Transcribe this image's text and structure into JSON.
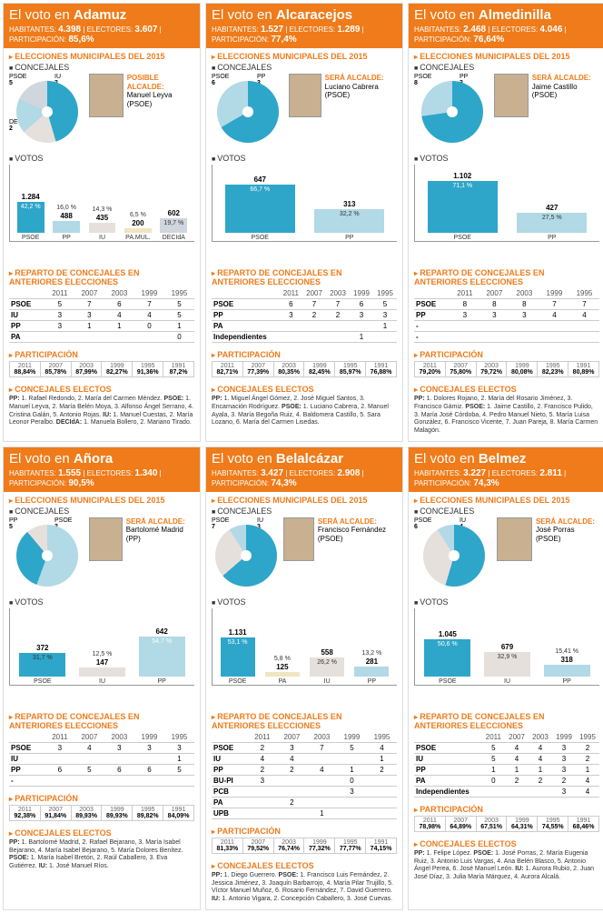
{
  "c": {
    "psoe": "#2ea6c9",
    "pp": "#b1d9e6",
    "iu": "#e6e0dc",
    "pa": "#efe5c0",
    "decida": "#cfd6dd",
    "orange": "#ef7b1a",
    "grid": "#cccccc",
    "brown": "#a8856c"
  },
  "cards": [
    {
      "town": "Adamuz",
      "hab": "4.398",
      "elec": "3.607",
      "part": "85,6%",
      "seats": [
        [
          "PSOE",
          "5",
          "#2ea6c9"
        ],
        [
          "IU",
          "2",
          "#e6e0dc"
        ],
        [
          "PP",
          "2",
          "#b1d9e6"
        ],
        [
          "DECIdA",
          "2",
          "#cfd6dd"
        ]
      ],
      "mayor_role": "POSIBLE ALCALDE:",
      "mayor": "Manuel Leyva (PSOE)",
      "bars": [
        [
          "PSOE",
          "1.284",
          "42,2 %",
          42.2,
          "#2ea6c9"
        ],
        [
          "PP",
          "488",
          "16,0 %",
          16.0,
          "#b1d9e6"
        ],
        [
          "IU",
          "435",
          "14,3 %",
          14.3,
          "#e6e0dc"
        ],
        [
          "PA.MUL.",
          "200",
          "6,5 %",
          6.5,
          "#efe5c0"
        ],
        [
          "DECIdA",
          "602",
          "19,7 %",
          19.7,
          "#cfd6dd"
        ]
      ],
      "ymax": 3000,
      "hist_cols": [
        "2011",
        "2007",
        "2003",
        "1999",
        "1995"
      ],
      "hist": [
        [
          "PSOE",
          "5",
          "7",
          "6",
          "7",
          "5"
        ],
        [
          "IU",
          "3",
          "3",
          "4",
          "4",
          "5"
        ],
        [
          "PP",
          "3",
          "1",
          "1",
          "0",
          "1"
        ],
        [
          "PA",
          "",
          "",
          "",
          "",
          "0"
        ]
      ],
      "p": [
        [
          "2011",
          "88,84%"
        ],
        [
          "2007",
          "85,78%"
        ],
        [
          "2003",
          "87,99%"
        ],
        [
          "1999",
          "82,27%"
        ],
        [
          "1995",
          "91,36%"
        ],
        [
          "1991",
          "87,2%"
        ]
      ],
      "elc": "PP: 1. Rafael Redondo, 2. María del Carmen Méndez. PSOE: 1. Manuel Leyva, 2. María Belén Moya, 3. Alfonso Ángel Serrano, 4. Cristina Galán, 5. Antonio Rojas. IU: 1. Manuel Cuestas, 2. María Leonor Peralbo. DECIdA: 1. Manuela Bollero, 2. Mariano Tirado."
    },
    {
      "town": "Alcaracejos",
      "hab": "1.527",
      "elec": "1.289",
      "part": "77,4%",
      "seats": [
        [
          "PSOE",
          "6",
          "#2ea6c9"
        ],
        [
          "PP",
          "3",
          "#b1d9e6"
        ]
      ],
      "mayor_role": "SERÁ ALCALDE:",
      "mayor": "Luciano Cabrera (PSOE)",
      "bars": [
        [
          "PSOE",
          "647",
          "66,7 %",
          66.7,
          "#2ea6c9"
        ],
        [
          "PP",
          "313",
          "32,2 %",
          32.2,
          "#b1d9e6"
        ]
      ],
      "ymax": 3000,
      "hist_cols": [
        "2011",
        "2007",
        "2003",
        "1999",
        "1995"
      ],
      "hist": [
        [
          "PSOE",
          "6",
          "7",
          "7",
          "6",
          "5"
        ],
        [
          "PP",
          "3",
          "2",
          "2",
          "3",
          "3"
        ],
        [
          "PA",
          "",
          "",
          "",
          "",
          "1"
        ],
        [
          "Independientes",
          "",
          "",
          "",
          "1",
          ""
        ]
      ],
      "p": [
        [
          "2011",
          "82,71%"
        ],
        [
          "2007",
          "77,39%"
        ],
        [
          "2003",
          "80,35%"
        ],
        [
          "1999",
          "82,45%"
        ],
        [
          "1995",
          "85,97%"
        ],
        [
          "1991",
          "76,88%"
        ]
      ],
      "elc": "PP: 1. Miguel Ángel Gómez, 2. José Miguel Santos, 3. Encarnación Rodríguez. PSOE: 1. Luciano Cabrera, 2. Manuel Ayala, 3. María Begoña Ruiz, 4. Baldomera Castillo, 5. Sara Lozano, 6. María del Carmen Lisedas."
    },
    {
      "town": "Almedinilla",
      "hab": "2.468",
      "elec": "4.046",
      "part": "76,64%",
      "seats": [
        [
          "PSOE",
          "8",
          "#2ea6c9"
        ],
        [
          "PP",
          "3",
          "#b1d9e6"
        ]
      ],
      "mayor_role": "SERÁ ALCALDE:",
      "mayor": "Jaime Castillo (PSOE)",
      "bars": [
        [
          "PSOE",
          "1.102",
          "71,1 %",
          71.1,
          "#2ea6c9"
        ],
        [
          "PP",
          "427",
          "27,5 %",
          27.5,
          "#b1d9e6"
        ]
      ],
      "ymax": 3000,
      "hist_cols": [
        "2011",
        "2007",
        "2003",
        "1999",
        "1995"
      ],
      "hist": [
        [
          "PSOE",
          "8",
          "8",
          "8",
          "7",
          "7"
        ],
        [
          "PP",
          "3",
          "3",
          "3",
          "4",
          "4"
        ],
        [
          "-",
          "",
          "",
          "",
          "",
          ""
        ],
        [
          "-",
          "",
          "",
          "",
          "",
          ""
        ]
      ],
      "p": [
        [
          "2011",
          "79,20%"
        ],
        [
          "2007",
          "75,80%"
        ],
        [
          "2003",
          "79,72%"
        ],
        [
          "1999",
          "80,08%"
        ],
        [
          "1995",
          "82,23%"
        ],
        [
          "1991",
          "80,89%"
        ]
      ],
      "elc": "PP: 1. Dolores Rojano, 2. María del Rosario Jiménez, 3. Francisco Gámiz. PSOE: 1. Jaime Castillo, 2. Francisco Pulido, 3. María José Córdoba, 4. Pedro Manuel Nieto, 5. María Luisa González, 6. Francisco Vicente, 7. Juan Pareja, 8. María Carmen Malagón."
    },
    {
      "town": "Añora",
      "hab": "1.555",
      "elec": "1.340",
      "part": "90,5%",
      "seats": [
        [
          "PP",
          "5",
          "#b1d9e6"
        ],
        [
          "PSOE",
          "3",
          "#2ea6c9"
        ],
        [
          "IU",
          "1",
          "#e6e0dc"
        ]
      ],
      "mayor_role": "SERÁ ALCALDE:",
      "mayor": "Bartolomé Madrid (PP)",
      "bars": [
        [
          "PSOE",
          "372",
          "31,7 %",
          31.7,
          "#2ea6c9"
        ],
        [
          "IU",
          "147",
          "12,5 %",
          12.5,
          "#e6e0dc"
        ],
        [
          "PP",
          "642",
          "54,7 %",
          54.7,
          "#b1d9e6"
        ]
      ],
      "ymax": 3000,
      "hist_cols": [
        "2011",
        "2007",
        "2003",
        "1999",
        "1995"
      ],
      "hist": [
        [
          "PSOE",
          "3",
          "4",
          "3",
          "3",
          "3"
        ],
        [
          "IU",
          "",
          "",
          "",
          "",
          "1"
        ],
        [
          "PP",
          "6",
          "5",
          "6",
          "6",
          "5"
        ],
        [
          "-",
          "",
          "",
          "",
          "",
          ""
        ]
      ],
      "p": [
        [
          "2011",
          "92,38%"
        ],
        [
          "2007",
          "91,84%"
        ],
        [
          "2003",
          "89,93%"
        ],
        [
          "1999",
          "89,93%"
        ],
        [
          "1995",
          "89,82%"
        ],
        [
          "1991",
          "84,09%"
        ]
      ],
      "elc": "PP: 1. Bartolomé Madrid, 2. Rafael Bejarano, 3. María Isabel Bejarano, 4. María Isabel Bejarano, 5. María Dolores Benítez. PSOE: 1. María Isabel Bretón, 2. Raúl Caballero, 3. Eva Gutiérrez. IU: 1. José Manuel Ríos."
    },
    {
      "town": "Belalcázar",
      "hab": "3.427",
      "elec": "2.908",
      "part": "74,3%",
      "seats": [
        [
          "PSOE",
          "7",
          "#2ea6c9"
        ],
        [
          "IU",
          "3",
          "#e6e0dc"
        ],
        [
          "PP",
          "1",
          "#b1d9e6"
        ]
      ],
      "mayor_role": "SERÁ ALCALDE:",
      "mayor": "Francisco Fernández (PSOE)",
      "bars": [
        [
          "PSOE",
          "1.131",
          "53,1 %",
          53.1,
          "#2ea6c9"
        ],
        [
          "PA",
          "125",
          "5,8 %",
          5.8,
          "#efe5c0"
        ],
        [
          "IU",
          "558",
          "26,2 %",
          26.2,
          "#e6e0dc"
        ],
        [
          "PP",
          "281",
          "13,2 %",
          13.2,
          "#b1d9e6"
        ]
      ],
      "ymax": 3000,
      "hist_cols": [
        "2011",
        "2007",
        "2003",
        "1999",
        "1995"
      ],
      "hist": [
        [
          "PSOE",
          "2",
          "3",
          "7",
          "5",
          "4"
        ],
        [
          "IU",
          "4",
          "4",
          "",
          "",
          "1"
        ],
        [
          "PP",
          "2",
          "2",
          "4",
          "1",
          "2"
        ],
        [
          "BU-PI",
          "3",
          "",
          "",
          "0",
          ""
        ],
        [
          "PCB",
          "",
          "",
          "",
          "3",
          ""
        ],
        [
          "PA",
          "",
          "2",
          "",
          "",
          ""
        ],
        [
          "UPB",
          "",
          "",
          "1",
          "",
          ""
        ]
      ],
      "p": [
        [
          "2011",
          "81,33%"
        ],
        [
          "2007",
          "79,52%"
        ],
        [
          "2003",
          "76,74%"
        ],
        [
          "1999",
          "77,32%"
        ],
        [
          "1995",
          "77,77%"
        ],
        [
          "1991",
          "74,15%"
        ]
      ],
      "elc": "PP: 1. Diego Guerrero. PSOE: 1. Francisco Luis Fernández, 2. Jessica Jiménez, 3. Joaquín Barbarrojo, 4. María Pilar Trujillo, 5. Víctor Manuel Muñoz, 6. Rosario Fernández, 7. David Guerrero. IU: 1. Antonio Vigara, 2. Concepción Caballero, 3. José Cuevas."
    },
    {
      "town": "Belmez",
      "hab": "3.227",
      "elec": "2.811",
      "part": "74,3%",
      "seats": [
        [
          "PSOE",
          "6",
          "#2ea6c9"
        ],
        [
          "IU",
          "4",
          "#e6e0dc"
        ],
        [
          "PP",
          "1",
          "#b1d9e6"
        ]
      ],
      "mayor_role": "SERÁ ALCALDE:",
      "mayor": "José Porras (PSOE)",
      "bars": [
        [
          "PSOE",
          "1.045",
          "50,6 %",
          50.6,
          "#2ea6c9"
        ],
        [
          "IU",
          "679",
          "32,9 %",
          32.9,
          "#e6e0dc"
        ],
        [
          "PP",
          "318",
          "15,41 %",
          15.4,
          "#b1d9e6"
        ]
      ],
      "ymax": 3000,
      "hist_cols": [
        "2011",
        "2007",
        "2003",
        "1999",
        "1995"
      ],
      "hist": [
        [
          "PSOE",
          "5",
          "4",
          "4",
          "3",
          "2"
        ],
        [
          "IU",
          "5",
          "4",
          "4",
          "3",
          "2"
        ],
        [
          "PP",
          "1",
          "1",
          "1",
          "3",
          "1"
        ],
        [
          "PA",
          "0",
          "2",
          "2",
          "2",
          "4"
        ],
        [
          "Independientes",
          "",
          "",
          "",
          "3",
          "4"
        ]
      ],
      "p": [
        [
          "2011",
          "78,98%"
        ],
        [
          "2007",
          "64,89%"
        ],
        [
          "2003",
          "67,51%"
        ],
        [
          "1999",
          "64,31%"
        ],
        [
          "1995",
          "74,55%"
        ],
        [
          "1991",
          "68,46%"
        ]
      ],
      "elc": "PP: 1. Felipe López. PSOE: 1. José Porras, 2. María Eugenia Ruiz, 3. Antonio Luis Vargas, 4. Ana Belén Blasco, 5. Antonio Ángel Perea, 6. José Manuel León. IU: 1. Aurora Rubio, 2. Juan José Díaz, 3. Julia María Márquez, 4. Aurora Alcalá."
    }
  ],
  "labels": {
    "elec2015": "ELECCIONES MUNICIPALES DEL 2015",
    "concejales": "CONCEJALES",
    "votos": "VOTOS",
    "reparto": "REPARTO DE CONCEJALES EN ANTERIORES ELECCIONES",
    "participacion": "PARTICIPACIÓN",
    "electos": "CONCEJALES ELECTOS",
    "hab": "HABITANTES:",
    "elec_l": "ELECTORES:",
    "part_l": "PARTICIPACIÓN:",
    "voto_en": "El voto en"
  }
}
